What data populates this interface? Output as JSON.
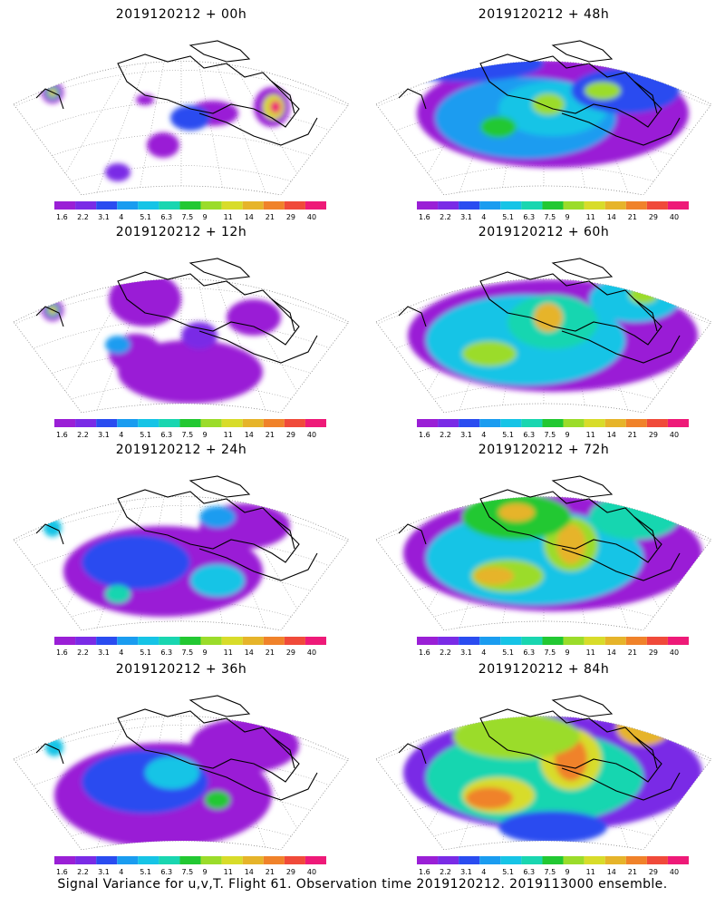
{
  "panels": [
    {
      "title": "2019120212 + 00h",
      "lead_hours": 0
    },
    {
      "title": "2019120212 + 48h",
      "lead_hours": 48
    },
    {
      "title": "2019120212 + 12h",
      "lead_hours": 12
    },
    {
      "title": "2019120212 + 60h",
      "lead_hours": 60
    },
    {
      "title": "2019120212 + 24h",
      "lead_hours": 24
    },
    {
      "title": "2019120212 + 72h",
      "lead_hours": 72
    },
    {
      "title": "2019120212 + 36h",
      "lead_hours": 36
    },
    {
      "title": "2019120212 + 84h",
      "lead_hours": 84
    }
  ],
  "colorbar": {
    "labels": [
      "1.6",
      "2.2",
      "3.1",
      "4",
      "5.1",
      "6.3",
      "7.5",
      "9",
      "11",
      "14",
      "21",
      "29",
      "40"
    ],
    "colors": [
      "#9a1fd6",
      "#7a2be6",
      "#2a4cf0",
      "#1a9cf0",
      "#16c4e6",
      "#19d6b0",
      "#22c832",
      "#9bdc2a",
      "#d8dc2a",
      "#e6b42a",
      "#f0822a",
      "#f04a3a",
      "#ee1a78"
    ]
  },
  "caption": "Signal Variance for u,v,T. Flight 61. Observation time 2019120212. 2019113000 ensemble.",
  "chart_data": {
    "type": "heatmap",
    "description_fields": [
      "field",
      "valid_time",
      "lead_hours",
      "colorbar_levels"
    ],
    "field": "Signal Variance for u,v,T",
    "initial_time": "2019120212",
    "lead_hours": [
      0,
      12,
      24,
      36,
      48,
      60,
      72,
      84
    ],
    "colorbar_levels": [
      1.6,
      2.2,
      3.1,
      4,
      5.1,
      6.3,
      7.5,
      9,
      11,
      14,
      21,
      29,
      40
    ]
  }
}
